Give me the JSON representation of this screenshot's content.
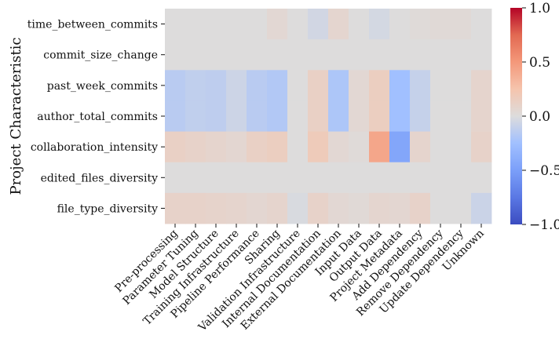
{
  "chart_data": {
    "type": "heatmap",
    "ylabel": "Project Characteristic",
    "xlabel": "",
    "title": "",
    "rows": [
      "time_between_commits",
      "commit_size_change",
      "past_week_commits",
      "author_total_commits",
      "collaboration_intensity",
      "edited_files_diversity",
      "file_type_diversity"
    ],
    "columns": [
      "Pre-processing",
      "Parameter Tuning",
      "Model Structure",
      "Training Infrastructure",
      "Pipeline Performance",
      "Sharing",
      "Validation Infrastructure",
      "Internal Documentation",
      "External Documentation",
      "Input Data",
      "Output Data",
      "Project Metadata",
      "Add Dependency",
      "Remove Dependency",
      "Update Dependency",
      "Unknown"
    ],
    "values": [
      [
        0.0,
        0.0,
        0.0,
        0.0,
        0.0,
        0.05,
        0.0,
        -0.05,
        0.07,
        0.0,
        -0.04,
        0.0,
        0.02,
        0.03,
        0.03,
        0.0
      ],
      [
        0.0,
        0.0,
        0.0,
        0.0,
        0.0,
        0.0,
        0.0,
        0.0,
        0.0,
        0.0,
        0.0,
        0.0,
        0.0,
        0.0,
        0.0,
        0.0
      ],
      [
        -0.15,
        -0.12,
        -0.13,
        -0.07,
        -0.15,
        -0.18,
        0.0,
        0.12,
        -0.2,
        0.05,
        0.15,
        -0.25,
        -0.1,
        0.0,
        0.0,
        0.08
      ],
      [
        -0.15,
        -0.12,
        -0.13,
        -0.07,
        -0.15,
        -0.18,
        0.0,
        0.12,
        -0.2,
        0.05,
        0.15,
        -0.25,
        -0.1,
        0.0,
        0.0,
        0.08
      ],
      [
        0.12,
        0.1,
        0.08,
        0.06,
        0.12,
        0.15,
        0.0,
        0.18,
        0.05,
        0.02,
        0.42,
        -0.45,
        0.08,
        0.0,
        0.0,
        0.1
      ],
      [
        0.0,
        0.0,
        0.0,
        0.0,
        0.0,
        0.0,
        0.0,
        0.0,
        0.0,
        0.0,
        0.0,
        0.0,
        0.0,
        0.0,
        0.0,
        0.0
      ],
      [
        0.1,
        0.1,
        0.09,
        0.08,
        0.06,
        0.08,
        -0.02,
        0.1,
        0.05,
        0.03,
        0.07,
        0.06,
        0.1,
        0.0,
        0.0,
        -0.08
      ]
    ],
    "vmin": -1.0,
    "vmax": 1.0,
    "colormap": "coolwarm",
    "colorbar_ticks": [
      {
        "value": 1.0,
        "label": "1.0"
      },
      {
        "value": 0.5,
        "label": "0.5"
      },
      {
        "value": 0.0,
        "label": "0.0"
      },
      {
        "value": -0.5,
        "label": "−0.5"
      },
      {
        "value": -1.0,
        "label": "−1.0"
      }
    ],
    "grid": false,
    "legend": "colorbar-right"
  }
}
